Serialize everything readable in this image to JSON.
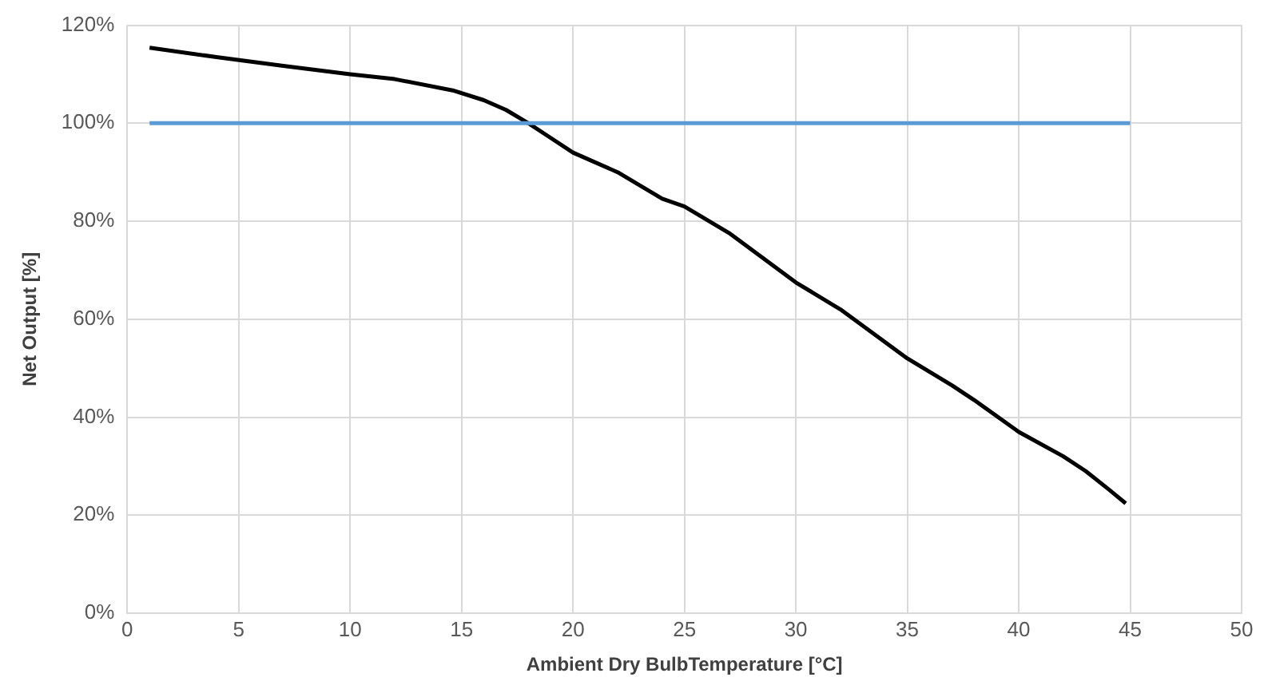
{
  "chart_data": {
    "type": "line",
    "xlabel": "Ambient Dry BulbTemperature [°C]",
    "ylabel": "Net Output [%]",
    "xlim": [
      0,
      50
    ],
    "xticks": [
      0,
      5,
      10,
      15,
      20,
      25,
      30,
      35,
      40,
      45,
      50
    ],
    "ylim": [
      0,
      120
    ],
    "yticks": [
      {
        "value": 0,
        "label": "0%"
      },
      {
        "value": 20,
        "label": "20%"
      },
      {
        "value": 40,
        "label": "40%"
      },
      {
        "value": 60,
        "label": "60%"
      },
      {
        "value": 80,
        "label": "80%"
      },
      {
        "value": 100,
        "label": "100%"
      },
      {
        "value": 120,
        "label": "120%"
      }
    ],
    "grid": true,
    "legend": false,
    "marker": "none",
    "line_style": "solid",
    "series": [
      {
        "color": "#5b9bd5",
        "x": [
          1,
          45
        ],
        "values": [
          100,
          100
        ]
      },
      {
        "color": "#000000",
        "x": [
          1,
          4,
          7,
          10,
          12,
          14.6,
          16,
          17,
          18,
          19,
          20,
          22,
          24,
          25,
          27,
          30,
          32,
          35,
          37,
          38,
          40,
          42,
          43,
          44,
          44.8
        ],
        "values": [
          115.4,
          113.5,
          111.7,
          110,
          109,
          106.7,
          104.7,
          102.7,
          100,
          97,
          94,
          90,
          84.6,
          83,
          77.6,
          67.5,
          62,
          52,
          46.5,
          43.5,
          37,
          32,
          29,
          25.4,
          22.4
        ]
      }
    ]
  }
}
